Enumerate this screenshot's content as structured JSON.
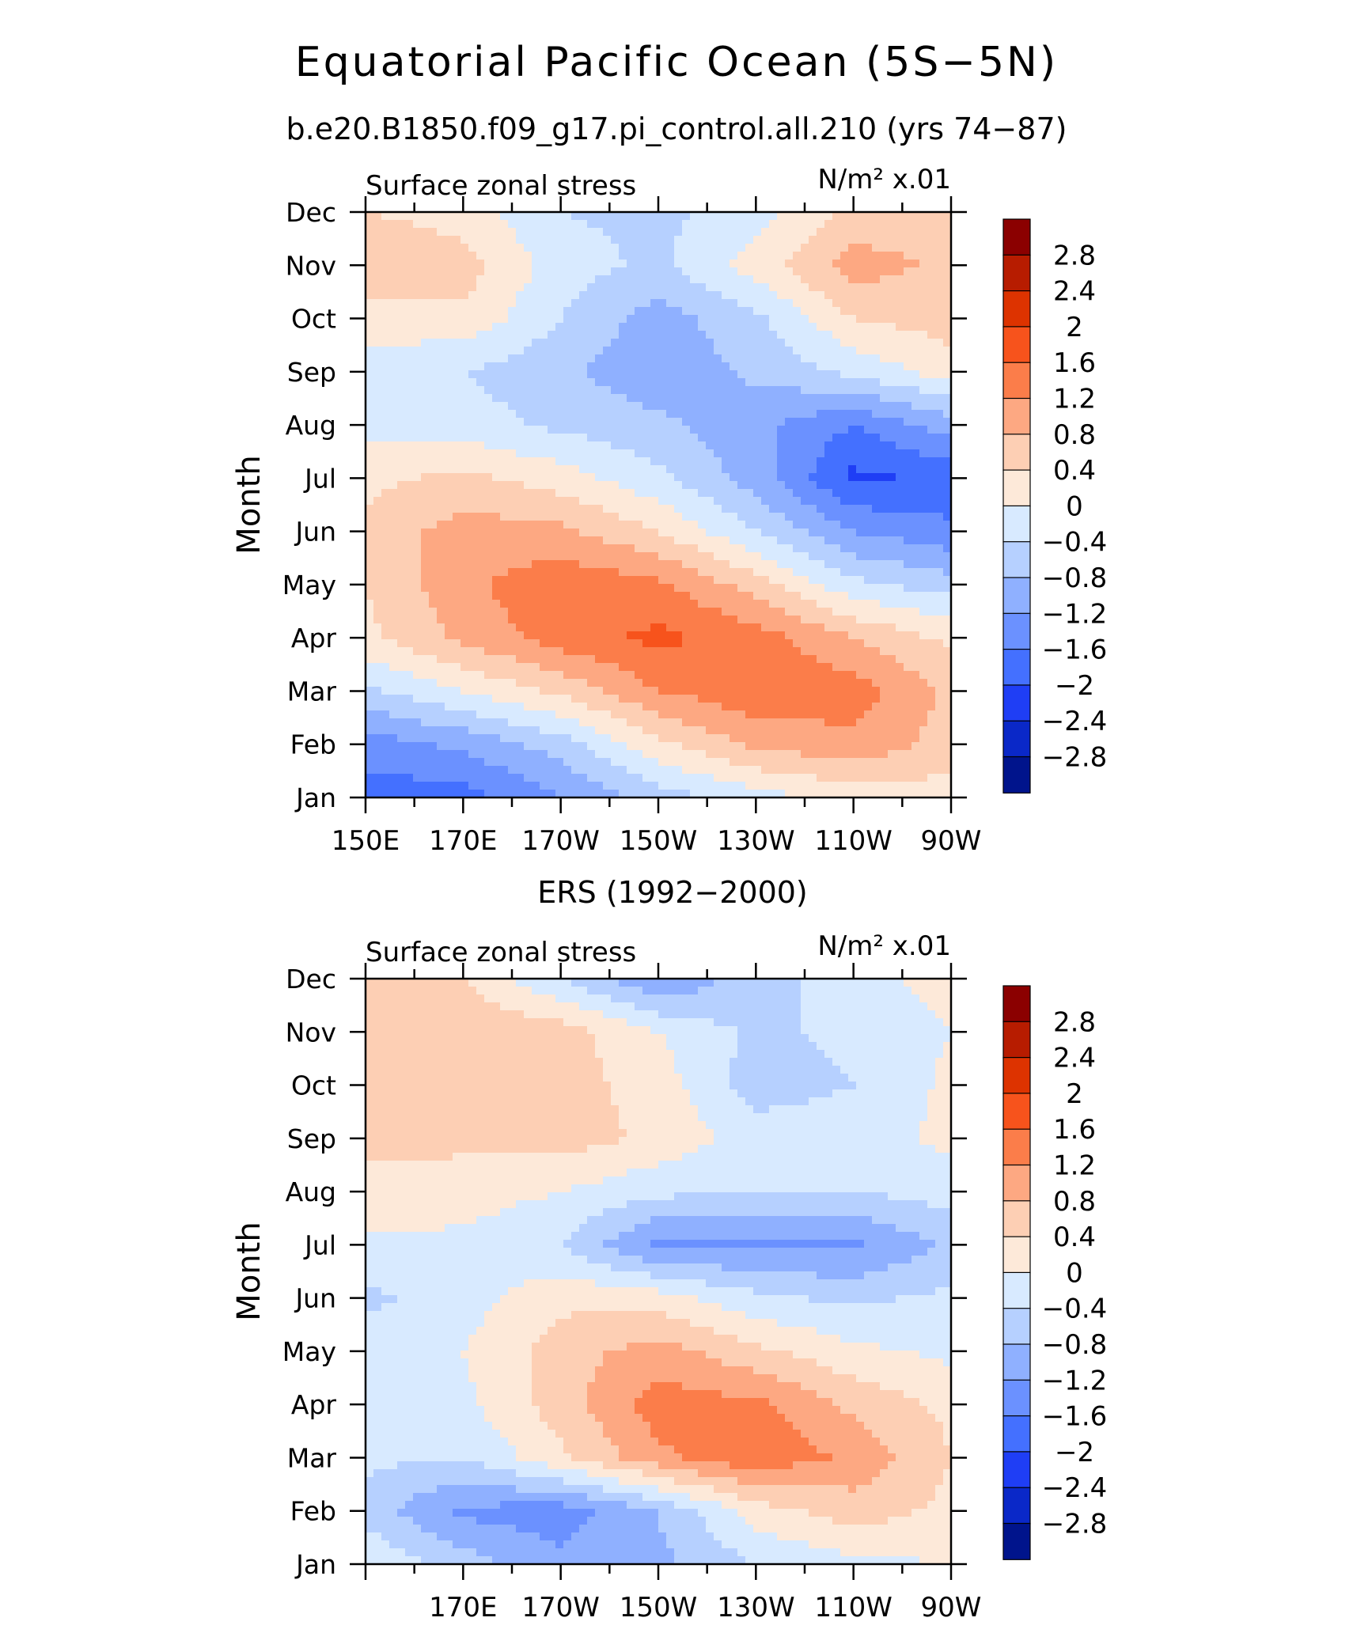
{
  "figure": {
    "title": "Equatorial Pacific Ocean (5S−5N)",
    "subtitle": "b.e20.B1850.f09_g17.pi_control.all.210 (yrs 74−87)"
  },
  "colorbar": {
    "levels": [
      "2.8",
      "2.4",
      "2",
      "1.6",
      "1.2",
      "0.8",
      "0.4",
      "0",
      "−0.4",
      "−0.8",
      "−1.2",
      "−1.6",
      "−2",
      "−2.4",
      "−2.8"
    ],
    "colors": [
      "#8b0000",
      "#b71c00",
      "#dd3300",
      "#f7531c",
      "#fb7d4a",
      "#fda882",
      "#fdcfb4",
      "#fde9d9",
      "#d8eaff",
      "#b6d0ff",
      "#8fb0ff",
      "#6b91ff",
      "#4470ff",
      "#1f3ef5",
      "#0a28c8",
      "#00148c"
    ]
  },
  "chart_data": [
    {
      "type": "heatmap",
      "title": "",
      "left_label": "Surface zonal stress",
      "right_label": "N/m² x.01",
      "xlabel": "",
      "ylabel": "Month",
      "x_ticks": [
        "150E",
        "170E",
        "170W",
        "150W",
        "130W",
        "110W",
        "90W"
      ],
      "y_ticks": [
        "Jan",
        "Feb",
        "Mar",
        "Apr",
        "May",
        "Jun",
        "Jul",
        "Aug",
        "Sep",
        "Oct",
        "Nov",
        "Dec"
      ],
      "x_range_deg_east": [
        150,
        270
      ],
      "x_cols": [
        150,
        170,
        190,
        210,
        230,
        250,
        270
      ],
      "values": [
        [
          -1.8,
          -1.8,
          -1.2,
          -0.6,
          -0.2,
          0.2,
          0.2
        ],
        [
          -1.4,
          -1.1,
          -0.6,
          0.3,
          0.9,
          1.1,
          0.6
        ],
        [
          -0.5,
          0.0,
          0.5,
          1.2,
          1.5,
          1.4,
          0.7
        ],
        [
          0.3,
          0.9,
          1.4,
          1.7,
          1.4,
          0.8,
          0.3
        ],
        [
          0.4,
          1.1,
          1.5,
          1.3,
          0.6,
          -0.3,
          -0.6
        ],
        [
          0.5,
          1.0,
          0.9,
          0.4,
          -0.4,
          -1.2,
          -1.5
        ],
        [
          0.3,
          0.5,
          0.2,
          -0.3,
          -1.0,
          -2.1,
          -1.9
        ],
        [
          -0.1,
          -0.2,
          -0.5,
          -0.7,
          -1.1,
          -1.6,
          -1.0
        ],
        [
          -0.2,
          -0.4,
          -0.7,
          -1.1,
          -0.7,
          -0.3,
          0.2
        ],
        [
          0.2,
          0.3,
          -0.4,
          -1.0,
          -0.5,
          0.4,
          0.6
        ],
        [
          0.8,
          0.6,
          -0.2,
          -0.5,
          0.2,
          1.0,
          0.7
        ],
        [
          0.4,
          0.2,
          -0.4,
          -0.5,
          -0.2,
          0.5,
          0.6
        ]
      ]
    },
    {
      "type": "heatmap",
      "title": "ERS (1992−2000)",
      "left_label": "Surface zonal stress",
      "right_label": "N/m² x.01",
      "xlabel": "",
      "ylabel": "Month",
      "x_ticks": [
        "170E",
        "170W",
        "150W",
        "130W",
        "110W",
        "90W"
      ],
      "y_ticks": [
        "Jan",
        "Feb",
        "Mar",
        "Apr",
        "May",
        "Jun",
        "Jul",
        "Aug",
        "Sep",
        "Oct",
        "Nov",
        "Dec"
      ],
      "x_range_deg_east": [
        150,
        270
      ],
      "x_cols": [
        150,
        170,
        190,
        210,
        230,
        250,
        270
      ],
      "values": [
        [
          0.0,
          -0.6,
          -1.1,
          -0.9,
          -0.4,
          -0.1,
          0.0
        ],
        [
          -0.6,
          -1.3,
          -1.4,
          -0.8,
          0.2,
          0.6,
          0.3
        ],
        [
          -0.3,
          -0.4,
          0.3,
          1.1,
          1.5,
          1.1,
          0.4
        ],
        [
          -0.2,
          -0.1,
          0.6,
          1.4,
          1.3,
          0.7,
          0.3
        ],
        [
          -0.1,
          0.0,
          0.6,
          1.0,
          0.5,
          0.1,
          -0.1
        ],
        [
          -0.5,
          -0.2,
          0.3,
          0.2,
          -0.3,
          -0.5,
          -0.3
        ],
        [
          -0.1,
          -0.1,
          -0.4,
          -1.3,
          -1.3,
          -1.3,
          -0.7
        ],
        [
          0.3,
          0.2,
          0.0,
          -0.3,
          -0.4,
          -0.4,
          -0.2
        ],
        [
          0.5,
          0.5,
          0.6,
          0.3,
          -0.2,
          -0.2,
          0.1
        ],
        [
          0.4,
          0.5,
          0.6,
          0.2,
          -0.6,
          -0.4,
          0.1
        ],
        [
          0.5,
          0.7,
          0.6,
          0.0,
          -0.5,
          -0.3,
          0.0
        ],
        [
          0.6,
          0.4,
          -0.4,
          -1.2,
          -0.6,
          -0.2,
          0.2
        ]
      ]
    }
  ]
}
